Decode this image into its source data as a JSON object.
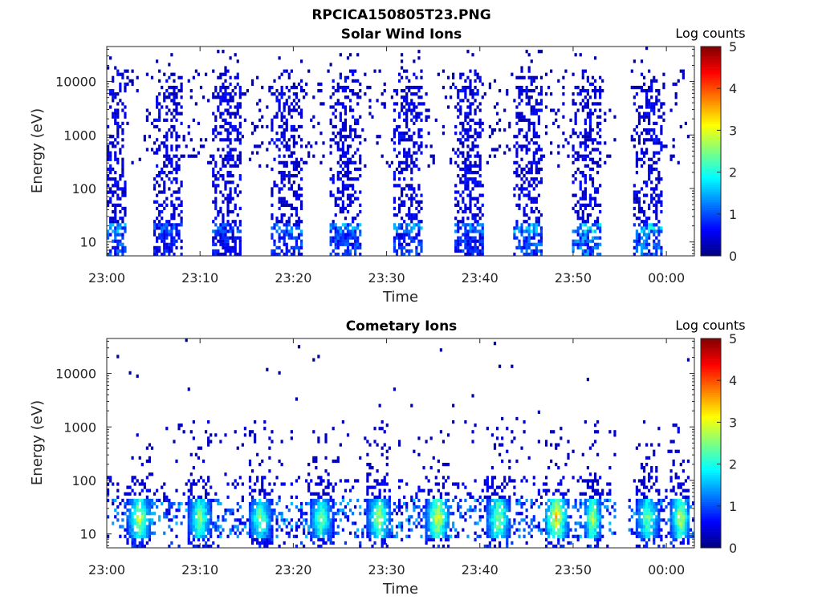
{
  "figure_title": "RPCICA150805T23.PNG",
  "chart_data": [
    {
      "type": "heatmap",
      "title": "Solar Wind Ions",
      "xlabel": "Time",
      "ylabel": "Energy (eV)",
      "x_start": "23:00",
      "x_end": "00:03",
      "x_range_minutes": [
        0,
        63
      ],
      "xticks": [
        "23:00",
        "23:10",
        "23:20",
        "23:30",
        "23:40",
        "23:50",
        "00:00"
      ],
      "yscale": "log",
      "ylim": [
        5.5,
        45000
      ],
      "yticks": [
        10,
        100,
        1000,
        10000
      ],
      "ytick_labels": [
        "10",
        "100",
        "1000",
        "10000"
      ],
      "colorbar": {
        "label": "Log counts",
        "min": 0,
        "max": 5,
        "ticks": [
          "0",
          "1",
          "2",
          "3",
          "4",
          "5"
        ],
        "colormap": "jet"
      },
      "bursts": [
        {
          "center_min": 1.0,
          "width_min": 2.4,
          "max_log_count": 1.9
        },
        {
          "center_min": 6.6,
          "width_min": 3.2,
          "max_log_count": 1.3
        },
        {
          "center_min": 12.8,
          "width_min": 3.2,
          "max_log_count": 1.3
        },
        {
          "center_min": 19.3,
          "width_min": 3.2,
          "max_log_count": 1.6
        },
        {
          "center_min": 25.6,
          "width_min": 3.2,
          "max_log_count": 1.8
        },
        {
          "center_min": 32.2,
          "width_min": 3.2,
          "max_log_count": 1.6
        },
        {
          "center_min": 38.8,
          "width_min": 3.2,
          "max_log_count": 1.5
        },
        {
          "center_min": 45.2,
          "width_min": 3.2,
          "max_log_count": 1.9
        },
        {
          "center_min": 51.5,
          "width_min": 3.2,
          "max_log_count": 2.2
        },
        {
          "center_min": 58.1,
          "width_min": 3.2,
          "max_log_count": 2.1
        }
      ],
      "data_gaps_min": [
        [
          54.6,
          56.0
        ],
        [
          62.6,
          63.0
        ]
      ]
    },
    {
      "type": "heatmap",
      "title": "Cometary Ions",
      "xlabel": "Time",
      "ylabel": "Energy (eV)",
      "x_start": "23:00",
      "x_end": "00:03",
      "x_range_minutes": [
        0,
        63
      ],
      "xticks": [
        "23:00",
        "23:10",
        "23:20",
        "23:30",
        "23:40",
        "23:50",
        "00:00"
      ],
      "yscale": "log",
      "ylim": [
        5.5,
        45000
      ],
      "yticks": [
        10,
        100,
        1000,
        10000
      ],
      "ytick_labels": [
        "10",
        "100",
        "1000",
        "10000"
      ],
      "colorbar": {
        "label": "Log counts",
        "min": 0,
        "max": 5,
        "ticks": [
          "0",
          "1",
          "2",
          "3",
          "4",
          "5"
        ],
        "colormap": "jet"
      },
      "bursts": [
        {
          "center_min": 3.5,
          "width_min": 2.6,
          "max_log_count": 3.4
        },
        {
          "center_min": 10.0,
          "width_min": 2.6,
          "max_log_count": 3.0
        },
        {
          "center_min": 16.5,
          "width_min": 2.6,
          "max_log_count": 2.9
        },
        {
          "center_min": 23.0,
          "width_min": 2.6,
          "max_log_count": 2.9
        },
        {
          "center_min": 29.2,
          "width_min": 2.6,
          "max_log_count": 3.2
        },
        {
          "center_min": 35.5,
          "width_min": 2.6,
          "max_log_count": 3.5
        },
        {
          "center_min": 42.0,
          "width_min": 2.6,
          "max_log_count": 3.2
        },
        {
          "center_min": 48.2,
          "width_min": 2.6,
          "max_log_count": 3.8
        },
        {
          "center_min": 52.1,
          "width_min": 2.0,
          "max_log_count": 3.3
        },
        {
          "center_min": 58.0,
          "width_min": 2.6,
          "max_log_count": 3.0
        },
        {
          "center_min": 61.5,
          "width_min": 2.2,
          "max_log_count": 3.4
        }
      ],
      "data_gaps_min": [
        [
          54.6,
          56.0
        ]
      ]
    }
  ]
}
